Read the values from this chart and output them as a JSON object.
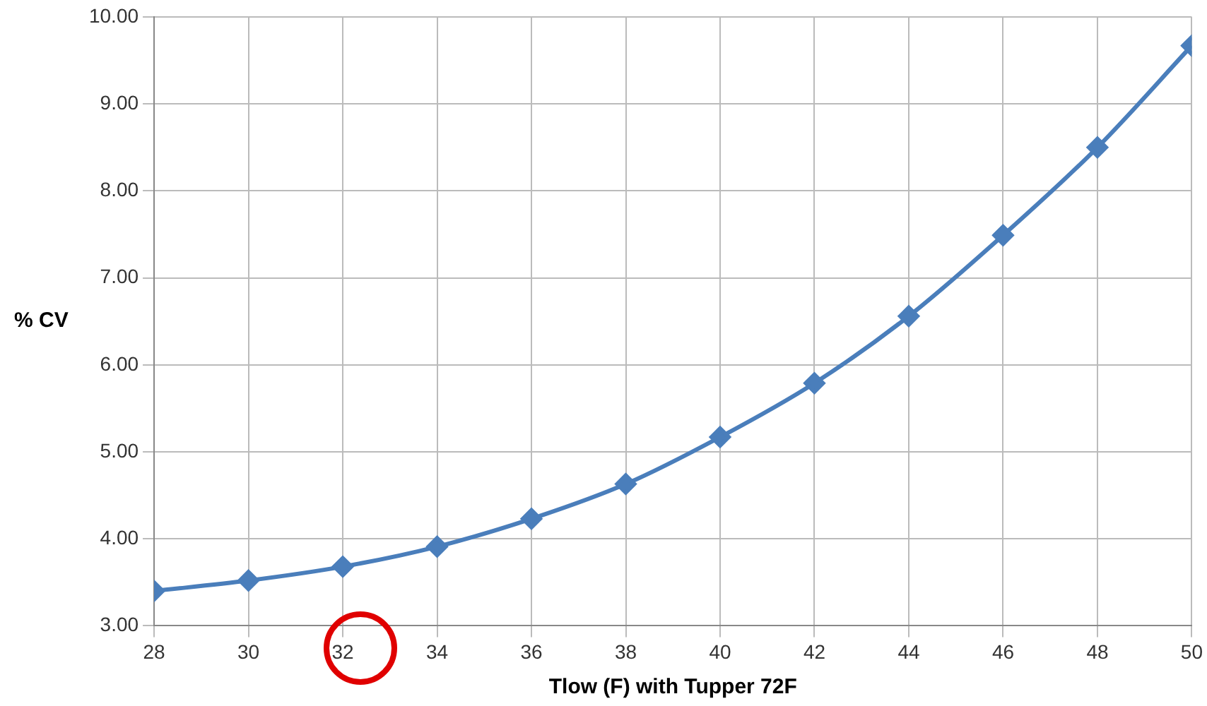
{
  "chart_data": {
    "type": "line",
    "xlabel": "Tlow (F) with Tupper 72F",
    "ylabel": "% CV",
    "x": [
      28,
      30,
      32,
      34,
      36,
      38,
      40,
      42,
      44,
      46,
      48,
      50
    ],
    "series": [
      {
        "color": "#4a7ebb",
        "values": [
          3.4,
          3.52,
          3.68,
          3.91,
          4.23,
          4.63,
          5.17,
          5.79,
          6.56,
          7.49,
          8.5,
          9.67
        ]
      }
    ],
    "xlim": [
      28,
      50
    ],
    "xticks": [
      28,
      30,
      32,
      34,
      36,
      38,
      40,
      42,
      44,
      46,
      48,
      50
    ],
    "ylim": [
      3,
      10
    ],
    "yticks": [
      {
        "value": 3,
        "label": "3.00"
      },
      {
        "value": 4,
        "label": "4.00"
      },
      {
        "value": 5,
        "label": "5.00"
      },
      {
        "value": 6,
        "label": "6.00"
      },
      {
        "value": 7,
        "label": "7.00"
      },
      {
        "value": 8,
        "label": "8.00"
      },
      {
        "value": 9,
        "label": "9.00"
      },
      {
        "value": 10,
        "label": "10.00"
      }
    ],
    "grid": true,
    "legend": false,
    "marker": "diamond",
    "line_style": "solid"
  }
}
